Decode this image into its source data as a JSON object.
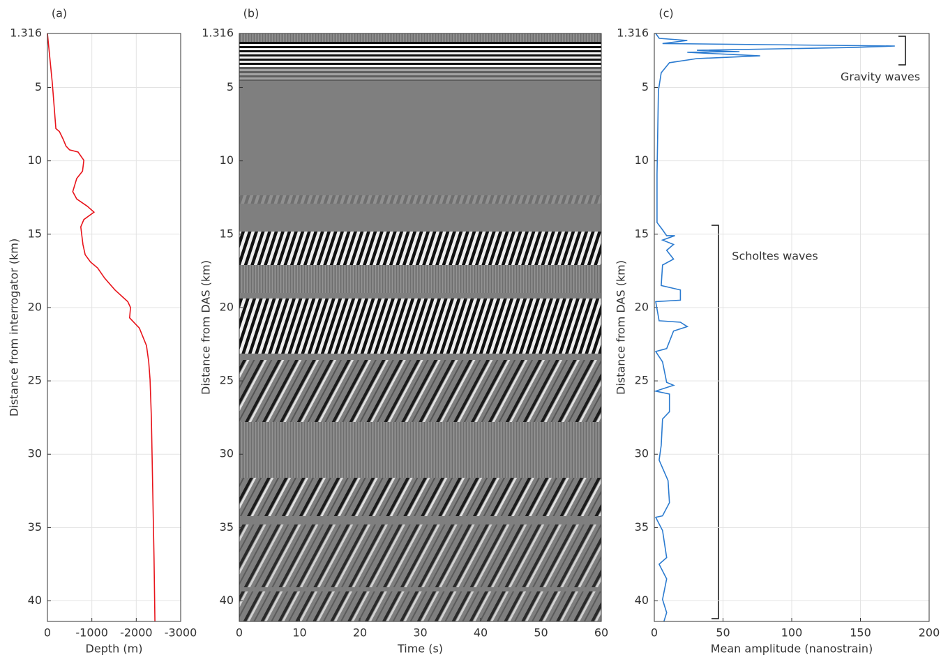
{
  "chart_data": [
    {
      "type": "line",
      "panel_label": "(a)",
      "x_label": "Depth (m)",
      "y_label": "Distance from interrogator (km)",
      "xlim": [
        0,
        -3000
      ],
      "xticks": [
        0,
        -1000,
        -2000,
        -3000
      ],
      "ylim": [
        1.316,
        41.4
      ],
      "yticks": [
        1.316,
        5,
        10,
        15,
        20,
        25,
        30,
        35,
        40
      ],
      "grid": true,
      "series": [
        {
          "color": "#e8141b",
          "x": [
            0,
            -110,
            -190,
            -270,
            -350,
            -420,
            -500,
            -690,
            -820,
            -790,
            -660,
            -570,
            -660,
            -900,
            -1050,
            -820,
            -750,
            -800,
            -850,
            -970,
            -1130,
            -1290,
            -1520,
            -1810,
            -1870,
            -1850,
            -2070,
            -2230,
            -2280,
            -2310,
            -2340,
            -2370,
            -2400,
            -2420
          ],
          "values": [
            1.316,
            4.7,
            7.8,
            8.0,
            8.5,
            9.0,
            9.25,
            9.4,
            9.96,
            10.7,
            11.2,
            12.1,
            12.6,
            13.1,
            13.5,
            14.0,
            14.5,
            15.7,
            16.4,
            16.9,
            17.3,
            18.0,
            18.8,
            19.6,
            20.0,
            20.7,
            21.4,
            22.6,
            23.7,
            24.9,
            27.5,
            32.3,
            37.05,
            41.4
          ]
        }
      ]
    },
    {
      "type": "image",
      "panel_label": "(b)",
      "x_label": "Time (s)",
      "y_label": "Distance from DAS (km)",
      "xlim": [
        0,
        60
      ],
      "xticks": [
        0,
        10,
        20,
        30,
        40,
        50,
        60
      ],
      "ylim": [
        1.316,
        41.4
      ],
      "yticks": [
        1.316,
        5,
        10,
        15,
        20,
        25,
        30,
        35,
        40
      ],
      "grid": false
    },
    {
      "type": "line",
      "panel_label": "(c)",
      "x_label": "Mean amplitude (nanostrain)",
      "y_label": "Distance from DAS (km)",
      "xlim": [
        0,
        200
      ],
      "xticks": [
        0,
        50,
        100,
        150,
        200
      ],
      "ylim": [
        1.316,
        41.4
      ],
      "yticks": [
        1.316,
        5,
        10,
        15,
        20,
        25,
        30,
        35,
        40
      ],
      "grid": true,
      "annotations": [
        "Gravity waves",
        "Scholtes waves"
      ],
      "series": [
        {
          "color": "#2b7bd0",
          "x": [
            1,
            3.6,
            24,
            6,
            175,
            144,
            31,
            62,
            24,
            77,
            31,
            11,
            5,
            3,
            2,
            2,
            6,
            9,
            15,
            6,
            14,
            9,
            14,
            6,
            5,
            19,
            19,
            1,
            3.5,
            19,
            24,
            14,
            9,
            1,
            6,
            9,
            14,
            1,
            11,
            11,
            6,
            5,
            3.5,
            10,
            11,
            6,
            1,
            6,
            9,
            3.5,
            9,
            6,
            9,
            7
          ],
          "values": [
            1.316,
            1.65,
            1.79,
            2.0,
            2.17,
            2.27,
            2.46,
            2.55,
            2.6,
            2.84,
            3.03,
            3.31,
            4.0,
            5.2,
            10.9,
            14.2,
            14.7,
            15.1,
            15.1,
            15.4,
            15.7,
            16.1,
            16.7,
            17.1,
            18.5,
            18.8,
            19.5,
            19.6,
            20.9,
            21.0,
            21.3,
            21.6,
            22.8,
            23.0,
            23.7,
            25.1,
            25.3,
            25.7,
            25.9,
            27.1,
            27.6,
            29.4,
            30.4,
            31.8,
            33.3,
            34.2,
            34.3,
            35.2,
            37.05,
            37.5,
            38.5,
            39.9,
            40.8,
            41.4
          ]
        }
      ]
    }
  ]
}
